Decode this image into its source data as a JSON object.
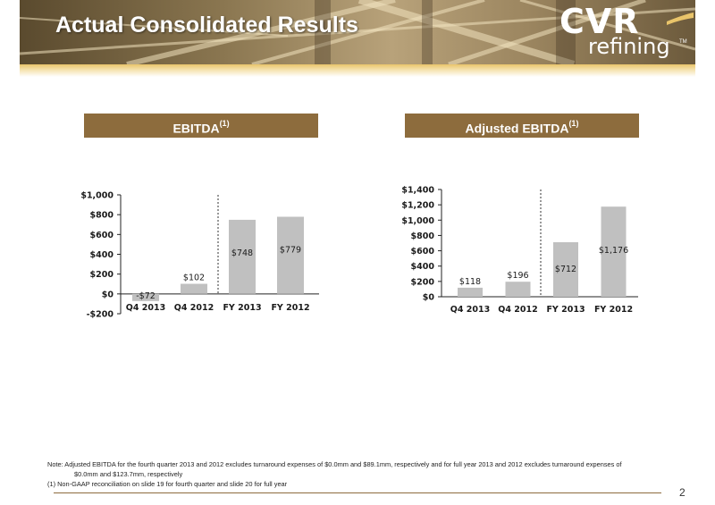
{
  "title": "Actual Consolidated Results",
  "logo": {
    "brand": "CVR",
    "sub": "refining",
    "tm": "TM"
  },
  "colors": {
    "header_gold": "#e9c46a",
    "section_brown": "#8d6c3d",
    "bar_gray": "#c0c0c0"
  },
  "chart_data": [
    {
      "type": "bar",
      "title": "EBITDA(1)",
      "title_main": "EBITDA",
      "title_sup": "(1)",
      "categories": [
        "Q4 2013",
        "Q4 2012",
        "FY 2013",
        "FY 2012"
      ],
      "values": [
        -72,
        102,
        748,
        779
      ],
      "value_labels": [
        "-$72",
        "$102",
        "$748",
        "$779"
      ],
      "ylim": [
        -200,
        1000
      ],
      "yticks": [
        -200,
        0,
        200,
        400,
        600,
        800,
        1000
      ],
      "ytick_labels": [
        "-$200",
        "$0",
        "$200",
        "$400",
        "$600",
        "$800",
        "$1,000"
      ],
      "xlabel": "",
      "ylabel": "",
      "grid": false
    },
    {
      "type": "bar",
      "title": "Adjusted EBITDA(1)",
      "title_main": "Adjusted EBITDA",
      "title_sup": "(1)",
      "categories": [
        "Q4 2013",
        "Q4 2012",
        "FY 2013",
        "FY 2012"
      ],
      "values": [
        118,
        196,
        712,
        1176
      ],
      "value_labels": [
        "$118",
        "$196",
        "$712",
        "$1,176"
      ],
      "ylim": [
        0,
        1400
      ],
      "yticks": [
        0,
        200,
        400,
        600,
        800,
        1000,
        1200,
        1400
      ],
      "ytick_labels": [
        "$0",
        "$200",
        "$400",
        "$600",
        "$800",
        "$1,000",
        "$1,200",
        "$1,400"
      ],
      "xlabel": "",
      "ylabel": "",
      "grid": false
    }
  ],
  "footnotes": {
    "note_line1": "Note: Adjusted EBITDA for the fourth quarter 2013 and 2012 excludes turnaround expenses of $0.0mm and $89.1mm, respectively and for full year 2013 and 2012 excludes turnaround expenses of",
    "note_line2": "$0.0mm and $123.7mm, respectively",
    "footnote_1": "(1)   Non-GAAP reconciliation on slide 19 for fourth quarter and slide 20 for full year"
  },
  "page_number": "2"
}
